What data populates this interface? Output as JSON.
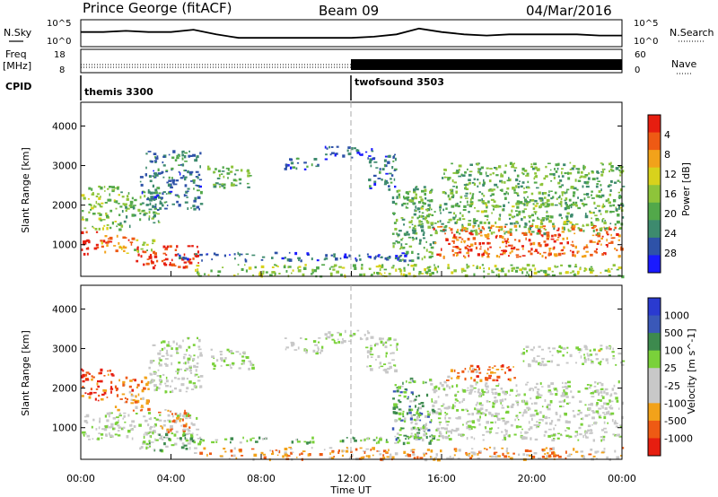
{
  "header": {
    "station": "Prince George (fitACF)",
    "beam": "Beam 09",
    "date": "04/Mar/2016"
  },
  "strip_panels": {
    "nsky": {
      "left_label": "N.Sky",
      "left_ticks": [
        "10^5",
        "10^0"
      ],
      "right_label": "N.Search",
      "right_ticks": [
        "10^5",
        "10^0"
      ],
      "trace_levels": [
        {
          "t": 0.0,
          "v": 0.55
        },
        {
          "t": 1.0,
          "v": 0.55
        },
        {
          "t": 2.0,
          "v": 0.6
        },
        {
          "t": 3.0,
          "v": 0.55
        },
        {
          "t": 4.0,
          "v": 0.55
        },
        {
          "t": 5.0,
          "v": 0.65
        },
        {
          "t": 6.0,
          "v": 0.45
        },
        {
          "t": 7.0,
          "v": 0.3
        },
        {
          "t": 8.0,
          "v": 0.3
        },
        {
          "t": 9.0,
          "v": 0.3
        },
        {
          "t": 10.0,
          "v": 0.3
        },
        {
          "t": 11.0,
          "v": 0.3
        },
        {
          "t": 12.0,
          "v": 0.3
        },
        {
          "t": 13.0,
          "v": 0.35
        },
        {
          "t": 14.0,
          "v": 0.45
        },
        {
          "t": 15.0,
          "v": 0.7
        },
        {
          "t": 16.0,
          "v": 0.55
        },
        {
          "t": 17.0,
          "v": 0.45
        },
        {
          "t": 18.0,
          "v": 0.4
        },
        {
          "t": 19.0,
          "v": 0.45
        },
        {
          "t": 20.0,
          "v": 0.45
        },
        {
          "t": 21.0,
          "v": 0.45
        },
        {
          "t": 22.0,
          "v": 0.45
        },
        {
          "t": 23.0,
          "v": 0.4
        },
        {
          "t": 24.0,
          "v": 0.4
        }
      ]
    },
    "freq": {
      "left_label_1": "Freq",
      "left_label_2": "[MHz]",
      "left_ticks": [
        "18",
        "8"
      ],
      "right_label": "Nave",
      "right_ticks": [
        "60",
        "0"
      ]
    },
    "cpid": {
      "label": "CPID",
      "segments": [
        {
          "name": "themis 3300",
          "start_hour": 0,
          "end_hour": 12
        },
        {
          "name": "twofsound 3503",
          "start_hour": 12,
          "end_hour": 24
        }
      ]
    }
  },
  "chart_data": [
    {
      "type": "heatmap",
      "title": "",
      "xlabel": "",
      "ylabel": "Slant Range [km]",
      "xlim": [
        0,
        24
      ],
      "ylim": [
        200,
        4600
      ],
      "yticks": [
        "1000",
        "2000",
        "3000",
        "4000"
      ],
      "colorbar": {
        "label": "Power [dB]",
        "range": [
          0,
          30
        ],
        "ticks": [
          "4",
          "8",
          "12",
          "16",
          "20",
          "24",
          "28"
        ],
        "colors": [
          "#1a1aff",
          "#2e52a8",
          "#3d8a6e",
          "#52a84a",
          "#8ec43a",
          "#d8d21c",
          "#f2a21a",
          "#ee5a14",
          "#e61e10"
        ]
      },
      "regions": [
        {
          "t0": 0.0,
          "t1": 0.7,
          "r0": 750,
          "r1": 1350,
          "level": 0.9
        },
        {
          "t0": 0.7,
          "t1": 2.3,
          "r0": 800,
          "r1": 1250,
          "level": 0.78
        },
        {
          "t0": 2.3,
          "t1": 3.3,
          "r0": 850,
          "r1": 1200,
          "level": 0.55
        },
        {
          "t0": 2.4,
          "t1": 5.2,
          "r0": 450,
          "r1": 1000,
          "level": 0.93
        },
        {
          "t0": 0.0,
          "t1": 1.7,
          "r0": 1400,
          "r1": 2500,
          "level": 0.5
        },
        {
          "t0": 1.7,
          "t1": 3.6,
          "r0": 1500,
          "r1": 2400,
          "level": 0.4
        },
        {
          "t0": 2.6,
          "t1": 5.3,
          "r0": 1900,
          "r1": 3400,
          "level": 0.25
        },
        {
          "t0": 5.6,
          "t1": 7.6,
          "r0": 2450,
          "r1": 3000,
          "level": 0.38
        },
        {
          "t0": 9.0,
          "t1": 10.7,
          "r0": 2900,
          "r1": 3200,
          "level": 0.22
        },
        {
          "t0": 10.8,
          "t1": 12.9,
          "r0": 3150,
          "r1": 3500,
          "level": 0.18
        },
        {
          "t0": 12.7,
          "t1": 14.0,
          "r0": 2400,
          "r1": 3300,
          "level": 0.22
        },
        {
          "t0": 13.8,
          "t1": 15.6,
          "r0": 600,
          "r1": 2500,
          "level": 0.38
        },
        {
          "t0": 4.2,
          "t1": 14.8,
          "r0": 620,
          "r1": 820,
          "level": 0.18
        },
        {
          "t0": 14.6,
          "t1": 24.0,
          "r0": 1300,
          "r1": 2100,
          "level": 0.42
        },
        {
          "t0": 15.6,
          "t1": 24.0,
          "r0": 700,
          "r1": 1500,
          "level": 0.83
        },
        {
          "t0": 16.0,
          "t1": 24.0,
          "r0": 2000,
          "r1": 3100,
          "level": 0.4
        },
        {
          "t0": 5.0,
          "t1": 24.0,
          "r0": 220,
          "r1": 520,
          "level": 0.5
        }
      ]
    },
    {
      "type": "heatmap",
      "title": "",
      "xlabel": "Time UT",
      "ylabel": "Slant Range [km]",
      "xlim": [
        0,
        24
      ],
      "ylim": [
        200,
        4600
      ],
      "yticks": [
        "1000",
        "2000",
        "3000",
        "4000"
      ],
      "xticks": [
        "00:00",
        "04:00",
        "08:00",
        "12:00",
        "16:00",
        "20:00",
        "00:00"
      ],
      "colorbar": {
        "label": "Velocity [m s^-1]",
        "range": [
          -1250,
          1250
        ],
        "ticks": [
          "1000",
          "500",
          "100",
          "25",
          "-25",
          "-100",
          "-500",
          "-1000"
        ],
        "colors": [
          "#e61e10",
          "#ee5a14",
          "#f2a21a",
          "#c8c8c8",
          "#c8c8c8",
          "#7ad13a",
          "#3d8a4e",
          "#3a58b8",
          "#2a3ad0"
        ]
      },
      "regions": [
        {
          "t0": 0.0,
          "t1": 5.2,
          "r0": 700,
          "r1": 1400,
          "level": 0.5
        },
        {
          "t0": 2.5,
          "t1": 5.2,
          "r0": 450,
          "r1": 900,
          "level": 0.6
        },
        {
          "t0": 0.0,
          "t1": 1.5,
          "r0": 1700,
          "r1": 2500,
          "level": 0.12
        },
        {
          "t0": 1.5,
          "t1": 3.0,
          "r0": 1400,
          "r1": 2300,
          "level": 0.25
        },
        {
          "t0": 3.4,
          "t1": 4.8,
          "r0": 900,
          "r1": 1500,
          "level": 0.28
        },
        {
          "t0": 3.0,
          "t1": 5.3,
          "r0": 1900,
          "r1": 3300,
          "level": 0.5
        },
        {
          "t0": 5.6,
          "t1": 7.6,
          "r0": 2500,
          "r1": 3000,
          "level": 0.5
        },
        {
          "t0": 9.0,
          "t1": 10.7,
          "r0": 2900,
          "r1": 3300,
          "level": 0.5
        },
        {
          "t0": 10.8,
          "t1": 12.9,
          "r0": 3150,
          "r1": 3500,
          "level": 0.5
        },
        {
          "t0": 12.6,
          "t1": 14.0,
          "r0": 2400,
          "r1": 3300,
          "level": 0.5
        },
        {
          "t0": 13.8,
          "t1": 15.6,
          "r0": 600,
          "r1": 2300,
          "level": 0.66
        },
        {
          "t0": 4.2,
          "t1": 14.8,
          "r0": 640,
          "r1": 780,
          "level": 0.62
        },
        {
          "t0": 14.6,
          "t1": 24.0,
          "r0": 700,
          "r1": 1500,
          "level": 0.5
        },
        {
          "t0": 15.5,
          "t1": 24.0,
          "r0": 1500,
          "r1": 2200,
          "level": 0.5
        },
        {
          "t0": 16.0,
          "t1": 19.2,
          "r0": 2200,
          "r1": 2600,
          "level": 0.2
        },
        {
          "t0": 19.5,
          "t1": 24.0,
          "r0": 2600,
          "r1": 3100,
          "level": 0.48
        },
        {
          "t0": 5.0,
          "t1": 24.0,
          "r0": 220,
          "r1": 520,
          "level": 0.3
        }
      ]
    }
  ]
}
